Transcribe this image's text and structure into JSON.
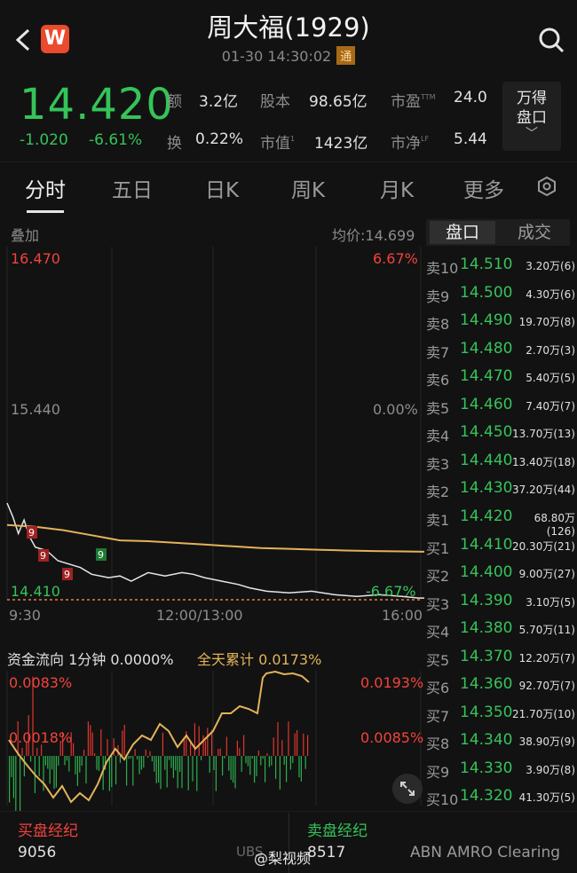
{
  "header": {
    "title": "周大福(1929)",
    "datetime": "01-30  14:30:02",
    "tong_badge": "通",
    "logo_letter": "W"
  },
  "quote": {
    "price": "14.420",
    "change": "-1.020",
    "change_pct": "-6.61%",
    "amount_label": "额",
    "amount_value": "3.2亿",
    "turnover_label": "换",
    "turnover_value": "0.22%",
    "shares_label": "股本",
    "shares_value": "98.65亿",
    "mktcap_label": "市值",
    "mktcap_value": "1423亿",
    "pe_label": "市盈",
    "pe_sup": "TTM",
    "pe_value": "24.0",
    "pb_label": "市净",
    "pb_sup": "LF",
    "pb_value": "5.44",
    "mktcap_sup": "1",
    "wande_line1": "万得",
    "wande_line2": "盘口",
    "wande_chevron": "﹀"
  },
  "tabs": [
    "分时",
    "五日",
    "日K",
    "周K",
    "月K",
    "更多"
  ],
  "active_tab": "分时",
  "chart": {
    "overlay_label": "叠加",
    "avg_price_label": "均价:14.699",
    "y_top_left": "16.470",
    "y_top_right": "6.67%",
    "y_mid_left": "15.440",
    "y_mid_right": "0.00%",
    "y_bot_left": "14.410",
    "y_bot_right": "-6.67%",
    "x_start": "9:30",
    "x_mid": "12:00/13:00",
    "x_end": "16:00",
    "markers": [
      "9",
      "9",
      "9",
      "9"
    ]
  },
  "chart_data": [
    {
      "type": "line",
      "x_domain": [
        "9:30",
        "16:00"
      ],
      "ylim": [
        14.41,
        16.47
      ],
      "series": [
        {
          "values": [
            [
              0,
              14.98
            ],
            [
              2,
              14.9
            ],
            [
              4,
              14.8
            ],
            [
              6,
              14.88
            ],
            [
              8,
              14.78
            ],
            [
              10,
              14.72
            ],
            [
              14,
              14.7
            ],
            [
              18,
              14.64
            ],
            [
              22,
              14.62
            ],
            [
              26,
              14.6
            ],
            [
              30,
              14.56
            ],
            [
              36,
              14.54
            ],
            [
              40,
              14.55
            ],
            [
              44,
              14.52
            ],
            [
              50,
              14.57
            ],
            [
              56,
              14.55
            ],
            [
              62,
              14.57
            ],
            [
              66,
              14.56
            ],
            [
              70,
              14.54
            ],
            [
              76,
              14.52
            ],
            [
              82,
              14.5
            ],
            [
              86,
              14.48
            ],
            [
              92,
              14.46
            ],
            [
              100,
              14.45
            ],
            [
              108,
              14.46
            ],
            [
              116,
              14.44
            ],
            [
              124,
              14.43
            ],
            [
              132,
              14.44
            ],
            [
              140,
              14.43
            ],
            [
              146,
              14.42
            ],
            [
              150,
              14.42
            ]
          ],
          "color": "#e6e6e6"
        },
        {
          "values": [
            [
              0,
              14.85
            ],
            [
              10,
              14.84
            ],
            [
              20,
              14.82
            ],
            [
              30,
              14.79
            ],
            [
              40,
              14.76
            ],
            [
              50,
              14.755
            ],
            [
              60,
              14.745
            ],
            [
              70,
              14.735
            ],
            [
              80,
              14.725
            ],
            [
              90,
              14.715
            ],
            [
              100,
              14.71
            ],
            [
              110,
              14.705
            ],
            [
              120,
              14.7
            ],
            [
              130,
              14.697
            ],
            [
              140,
              14.695
            ],
            [
              150,
              14.693
            ]
          ],
          "color": "#e3b35a"
        }
      ]
    },
    {
      "type": "line",
      "title": "资金流向 1分钟 0.0000%",
      "legend": "全天累计 0.0173%",
      "y_left": [
        "0.0083%",
        "0.0018%"
      ],
      "y_right": [
        "0.0193%",
        "0.0085%"
      ]
    }
  ],
  "fund_flow": {
    "label": "资金流向  1分钟  0.0000%",
    "total": "全天累计  0.0173%",
    "left_top": "0.0083%",
    "left_mid": "0.0018%",
    "right_top": "0.0193%",
    "right_mid": "0.0085%"
  },
  "orderbook": {
    "tab_active": "盘口",
    "tab_other": "成交",
    "rows": [
      {
        "side": "卖10",
        "price": "14.510",
        "vol": "3.20万(6)"
      },
      {
        "side": "卖9",
        "price": "14.500",
        "vol": "4.30万(6)"
      },
      {
        "side": "卖8",
        "price": "14.490",
        "vol": "19.70万(8)"
      },
      {
        "side": "卖7",
        "price": "14.480",
        "vol": "2.70万(3)"
      },
      {
        "side": "卖6",
        "price": "14.470",
        "vol": "5.40万(5)"
      },
      {
        "side": "卖5",
        "price": "14.460",
        "vol": "7.40万(7)"
      },
      {
        "side": "卖4",
        "price": "14.450",
        "vol": "13.70万(13)"
      },
      {
        "side": "卖3",
        "price": "14.440",
        "vol": "13.40万(18)"
      },
      {
        "side": "卖2",
        "price": "14.430",
        "vol": "37.20万(44)"
      },
      {
        "side": "卖1",
        "price": "14.420",
        "vol": "68.80万(126)"
      },
      {
        "side": "买1",
        "price": "14.410",
        "vol": "20.30万(21)"
      },
      {
        "side": "买2",
        "price": "14.400",
        "vol": "9.00万(27)"
      },
      {
        "side": "买3",
        "price": "14.390",
        "vol": "3.10万(5)"
      },
      {
        "side": "买4",
        "price": "14.380",
        "vol": "5.70万(11)"
      },
      {
        "side": "买5",
        "price": "14.370",
        "vol": "12.20万(7)"
      },
      {
        "side": "买6",
        "price": "14.360",
        "vol": "92.70万(7)"
      },
      {
        "side": "买7",
        "price": "14.350",
        "vol": "21.70万(10)"
      },
      {
        "side": "买8",
        "price": "14.340",
        "vol": "38.90万(9)"
      },
      {
        "side": "买9",
        "price": "14.330",
        "vol": "3.90万(8)"
      },
      {
        "side": "买10",
        "price": "14.320",
        "vol": "41.30万(5)"
      }
    ]
  },
  "brokers": {
    "buy_title": "买盘经纪",
    "sell_title": "卖盘经纪",
    "buy_value": "9056",
    "buy_code": "UBS",
    "sell_value": "8517",
    "sell_name": "ABN AMRO Clearing"
  },
  "watermark": "@梨视频",
  "colors": {
    "up": "#f2433d",
    "down": "#35c35a",
    "avg": "#e3b35a",
    "bg": "#121212"
  }
}
